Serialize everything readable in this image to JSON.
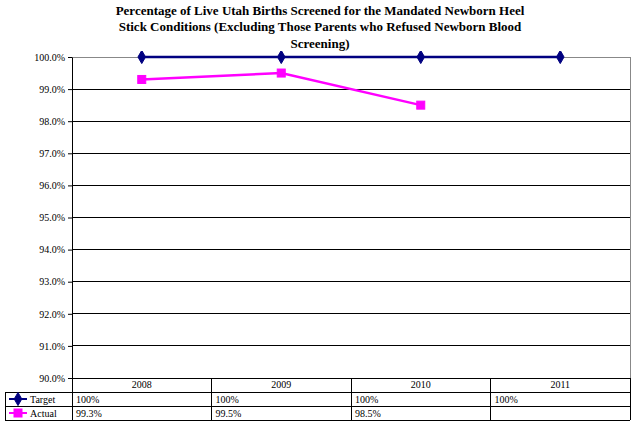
{
  "chart_data": {
    "type": "line",
    "title": "Percentage of Live Utah Births Screened for the Mandated Newborn Heel Stick Conditions (Excluding Those Parents who Refused Newborn Blood Screening)",
    "categories": [
      "2008",
      "2009",
      "2010",
      "2011"
    ],
    "series": [
      {
        "name": "Target",
        "color": "#000080",
        "marker": "diamond",
        "line_style": "solid",
        "values": [
          100,
          100,
          100,
          100
        ],
        "value_labels": [
          "100%",
          "100%",
          "100%",
          "100%"
        ]
      },
      {
        "name": "Actual",
        "color": "#ff00ff",
        "marker": "square",
        "line_style": "solid",
        "values": [
          99.3,
          99.5,
          98.5,
          null
        ],
        "value_labels": [
          "99.3%",
          "99.5%",
          "98.5%",
          null
        ]
      }
    ],
    "ylim": [
      90,
      100
    ],
    "yticks": [
      {
        "value": 90,
        "label": "90.0%"
      },
      {
        "value": 91,
        "label": "91.0%"
      },
      {
        "value": 92,
        "label": "92.0%"
      },
      {
        "value": 93,
        "label": "93.0%"
      },
      {
        "value": 94,
        "label": "94.0%"
      },
      {
        "value": 95,
        "label": "95.0%"
      },
      {
        "value": 96,
        "label": "96.0%"
      },
      {
        "value": 97,
        "label": "97.0%"
      },
      {
        "value": 98,
        "label": "98.0%"
      },
      {
        "value": 99,
        "label": "99.0%"
      },
      {
        "value": 100,
        "label": "100.0%"
      }
    ],
    "grid": true
  }
}
